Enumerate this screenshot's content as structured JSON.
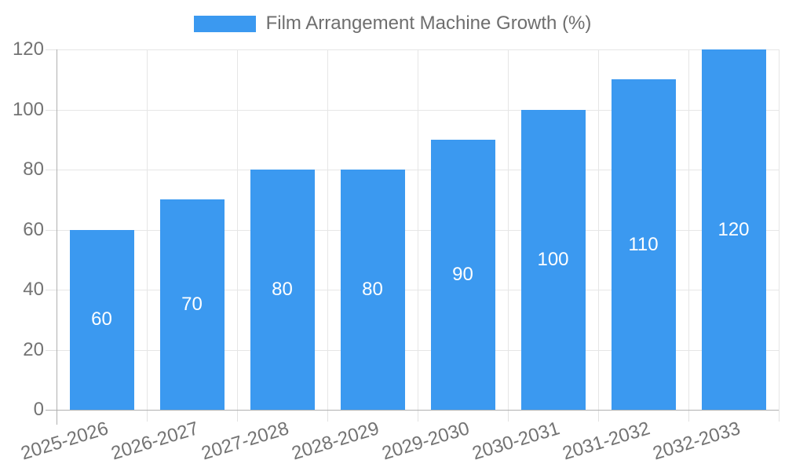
{
  "legend": {
    "label": "Film Arrangement Machine Growth (%)"
  },
  "chart_data": {
    "type": "bar",
    "title": "Film Arrangement Machine Growth (%)",
    "categories": [
      "2025-2026",
      "2026-2027",
      "2027-2028",
      "2028-2029",
      "2029-2030",
      "2030-2031",
      "2031-2032",
      "2032-2033"
    ],
    "values": [
      60,
      70,
      80,
      80,
      90,
      100,
      110,
      120
    ],
    "data_labels": [
      60,
      70,
      80,
      80,
      90,
      100,
      110,
      120
    ],
    "y_ticks": [
      0,
      20,
      40,
      60,
      80,
      100,
      120
    ],
    "ylim": [
      0,
      120
    ],
    "xlabel": "",
    "ylabel": "",
    "grid": true,
    "legend_position": "top-center",
    "colors": {
      "bar": "#3B99F0",
      "gridline": "#E6E6E6",
      "axis_line": "#B0B0B0",
      "tick_mark": "#E2E2E2",
      "tick_text": "#737373",
      "legend_text": "#6E6E6E",
      "bar_label_text": "#FFFFFF",
      "background": "#FFFFFF"
    }
  }
}
